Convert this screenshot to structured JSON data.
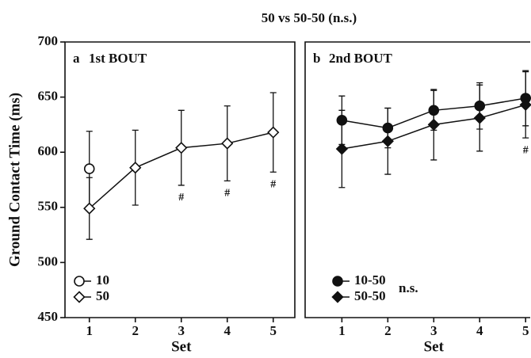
{
  "title": "50 vs 50-50 (n.s.)",
  "chart_data": [
    {
      "type": "line",
      "label": "a",
      "panel_title": "1st BOUT",
      "x": [
        1,
        2,
        3,
        4,
        5
      ],
      "xlim": [
        0.47,
        5.47
      ],
      "xticks": [
        1,
        2,
        3,
        4,
        5
      ],
      "xlabel": "Set",
      "ylim": [
        450,
        700
      ],
      "yticks": [
        450,
        500,
        550,
        600,
        650,
        700
      ],
      "ylabel": "Ground Contact Time (ms)",
      "legend": "lower left",
      "series": [
        {
          "name": "10",
          "color": "#111111",
          "marker": "circle",
          "filled": false,
          "values": [
            585,
            null,
            null,
            null,
            null
          ],
          "errors": [
            34,
            null,
            null,
            null,
            null
          ]
        },
        {
          "name": "50",
          "color": "#111111",
          "marker": "diamond",
          "filled": false,
          "values": [
            549,
            586,
            604,
            608,
            618
          ],
          "errors": [
            28,
            34,
            34,
            34,
            36
          ]
        }
      ],
      "annotations": [
        {
          "text": "#",
          "x": 3
        },
        {
          "text": "#",
          "x": 4
        },
        {
          "text": "#",
          "x": 5
        }
      ]
    },
    {
      "type": "line",
      "label": "b",
      "panel_title": "2nd BOUT",
      "x": [
        1,
        2,
        3,
        4,
        5
      ],
      "xlim": [
        0.2,
        5.1
      ],
      "xticks": [
        1,
        2,
        3,
        4,
        5
      ],
      "xlabel": "Set",
      "ylim": [
        450,
        700
      ],
      "legend": "lower left",
      "legend_note": "n.s.",
      "series": [
        {
          "name": "10-50",
          "color": "#111111",
          "marker": "circle",
          "filled": true,
          "values": [
            629,
            622,
            638,
            642,
            649
          ],
          "errors": [
            22,
            18,
            18,
            21,
            25
          ]
        },
        {
          "name": "50-50",
          "color": "#111111",
          "marker": "diamond",
          "filled": true,
          "values": [
            603,
            610,
            625,
            631,
            643
          ],
          "errors": [
            35,
            30,
            32,
            30,
            30
          ]
        }
      ],
      "annotations": [
        {
          "text": "#",
          "x": 5
        }
      ]
    }
  ]
}
